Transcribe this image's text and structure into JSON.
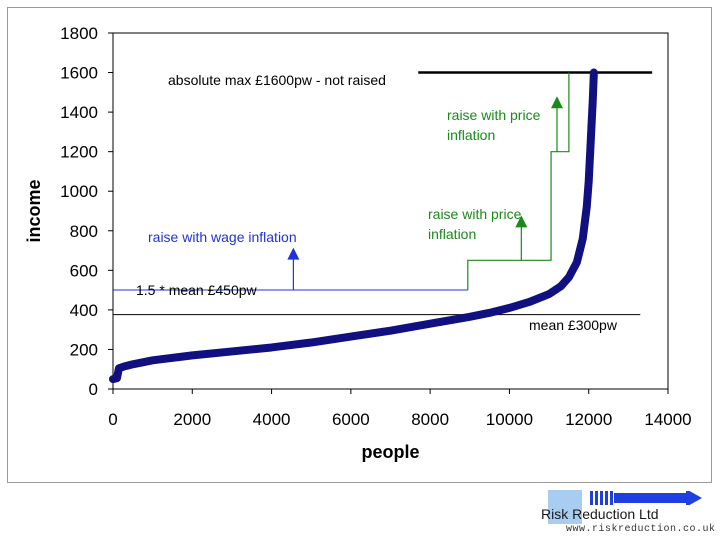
{
  "chart_data": {
    "type": "line",
    "title": "",
    "xlabel": "people",
    "ylabel": "income",
    "xlim": [
      0,
      14000
    ],
    "ylim": [
      0,
      1800
    ],
    "x_ticks": [
      "0",
      "2000",
      "4000",
      "6000",
      "8000",
      "10000",
      "12000",
      "14000"
    ],
    "y_ticks": [
      "0",
      "200",
      "400",
      "600",
      "800",
      "1000",
      "1200",
      "1400",
      "1600",
      "1800"
    ],
    "grid": false,
    "legend": "none",
    "series": [
      {
        "points": [
          [
            0,
            50
          ],
          [
            100,
            55
          ],
          [
            150,
            105
          ],
          [
            300,
            115
          ],
          [
            500,
            125
          ],
          [
            1000,
            145
          ],
          [
            2000,
            170
          ],
          [
            3000,
            190
          ],
          [
            4000,
            210
          ],
          [
            5000,
            235
          ],
          [
            6000,
            265
          ],
          [
            7000,
            295
          ],
          [
            8000,
            330
          ],
          [
            9000,
            365
          ],
          [
            9500,
            385
          ],
          [
            10000,
            410
          ],
          [
            10500,
            440
          ],
          [
            11000,
            480
          ],
          [
            11300,
            520
          ],
          [
            11500,
            565
          ],
          [
            11700,
            640
          ],
          [
            11850,
            760
          ],
          [
            11950,
            920
          ],
          [
            12000,
            1050
          ],
          [
            12050,
            1250
          ],
          [
            12100,
            1450
          ],
          [
            12130,
            1600
          ]
        ]
      }
    ],
    "annotations": {
      "abs_max": "absolute max £1600pw - not raised",
      "wage": "raise with wage inflation",
      "price1_line1": "raise with price",
      "price1_line2": "inflation",
      "price2_line1": "raise with price",
      "price2_line2": "inflation",
      "threshold": "1.5 * mean £450pw",
      "mean": "mean £300pw"
    },
    "reference_lines": {
      "abs_max": 1600,
      "mean": 300,
      "threshold": 450,
      "mid_step": 590,
      "upper_step": 1200
    },
    "colors": {
      "curve": "#101080",
      "wage": "#1e34d8",
      "price": "#1a8a1a",
      "black": "#000000"
    }
  },
  "logo": {
    "name": "Risk Reduction Ltd",
    "url": "www.riskreduction.co.uk"
  }
}
